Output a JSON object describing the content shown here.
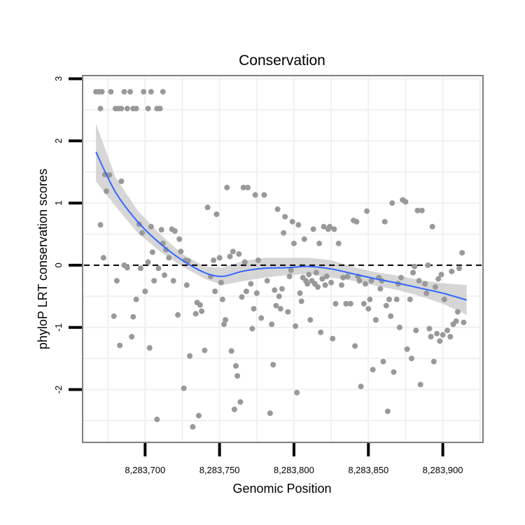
{
  "chart_data": {
    "type": "scatter",
    "title": "Conservation",
    "xlabel": "Genomic Position",
    "ylabel": "phyloP LRT conservation scores",
    "xlim": [
      8283658,
      8283927
    ],
    "ylim": [
      -2.85,
      3.05
    ],
    "x_ticks": [
      {
        "value": 8283700,
        "label": "8,283,700"
      },
      {
        "value": 8283750,
        "label": "8,283,750"
      },
      {
        "value": 8283800,
        "label": "8,283,800"
      },
      {
        "value": 8283850,
        "label": "8,283,850"
      },
      {
        "value": 8283900,
        "label": "8,283,900"
      }
    ],
    "y_ticks": [
      {
        "value": 3,
        "label": "3"
      },
      {
        "value": 2,
        "label": "2"
      },
      {
        "value": 1,
        "label": "1"
      },
      {
        "value": 0,
        "label": "0"
      },
      {
        "value": -1,
        "label": "-1"
      },
      {
        "value": -2,
        "label": "-2"
      }
    ],
    "reference_line": {
      "y": 0,
      "style": "dashed"
    },
    "colors": {
      "points": "#999999",
      "smooth": "#3366ff",
      "band": "#cccccc",
      "grid": "#f0f0f0",
      "frame": "#7f7f7f"
    },
    "smooth": {
      "x": [
        8283667,
        8283680,
        8283695,
        8283710,
        8283725,
        8283740,
        8283752,
        8283765,
        8283780,
        8283795,
        8283810,
        8283825,
        8283840,
        8283855,
        8283870,
        8283885,
        8283900,
        8283916
      ],
      "y": [
        1.82,
        1.18,
        0.7,
        0.35,
        0.08,
        -0.12,
        -0.18,
        -0.1,
        -0.05,
        -0.04,
        -0.02,
        -0.06,
        -0.14,
        -0.22,
        -0.29,
        -0.37,
        -0.45,
        -0.56
      ],
      "lower": [
        1.35,
        0.95,
        0.52,
        0.22,
        -0.02,
        -0.22,
        -0.32,
        -0.26,
        -0.2,
        -0.16,
        -0.14,
        -0.2,
        -0.25,
        -0.33,
        -0.4,
        -0.5,
        -0.62,
        -0.8
      ],
      "upper": [
        2.28,
        1.42,
        0.88,
        0.5,
        0.18,
        -0.02,
        -0.04,
        0.06,
        0.12,
        0.12,
        0.12,
        0.08,
        -0.03,
        -0.11,
        -0.17,
        -0.24,
        -0.29,
        -0.32
      ]
    },
    "points": [
      [
        8283667,
        2.79
      ],
      [
        8283669,
        2.79
      ],
      [
        8283671,
        2.79
      ],
      [
        8283670,
        2.52
      ],
      [
        8283677,
        2.79
      ],
      [
        8283680,
        2.52
      ],
      [
        8283682,
        2.52
      ],
      [
        8283684,
        2.52
      ],
      [
        8283686,
        2.79
      ],
      [
        8283688,
        2.52
      ],
      [
        8283690,
        2.79
      ],
      [
        8283692,
        2.52
      ],
      [
        8283694,
        2.52
      ],
      [
        8283699,
        2.79
      ],
      [
        8283702,
        2.52
      ],
      [
        8283704,
        2.79
      ],
      [
        8283708,
        2.52
      ],
      [
        8283710,
        2.52
      ],
      [
        8283712,
        2.79
      ],
      [
        8283670,
        0.65
      ],
      [
        8283672,
        0.12
      ],
      [
        8283673,
        1.46
      ],
      [
        8283674,
        1.19
      ],
      [
        8283676,
        1.45
      ],
      [
        8283679,
        -0.82
      ],
      [
        8283681,
        -0.25
      ],
      [
        8283683,
        -1.29
      ],
      [
        8283684,
        1.35
      ],
      [
        8283686,
        0.0
      ],
      [
        8283688,
        -0.04
      ],
      [
        8283691,
        -1.15
      ],
      [
        8283692,
        -0.83
      ],
      [
        8283694,
        -0.55
      ],
      [
        8283696,
        0.66
      ],
      [
        8283697,
        -0.05
      ],
      [
        8283698,
        0.52
      ],
      [
        8283700,
        -0.42
      ],
      [
        8283702,
        0.05
      ],
      [
        8283703,
        -1.33
      ],
      [
        8283704,
        0.62
      ],
      [
        8283705,
        0.21
      ],
      [
        8283706,
        -0.25
      ],
      [
        8283708,
        -2.48
      ],
      [
        8283709,
        -0.05
      ],
      [
        8283711,
        0.57
      ],
      [
        8283712,
        0.35
      ],
      [
        8283713,
        -0.16
      ],
      [
        8283714,
        0.25
      ],
      [
        8283716,
        0.12
      ],
      [
        8283718,
        0.58
      ],
      [
        8283719,
        -0.25
      ],
      [
        8283720,
        0.55
      ],
      [
        8283722,
        -0.8
      ],
      [
        8283723,
        0.42
      ],
      [
        8283724,
        0.22
      ],
      [
        8283726,
        -1.98
      ],
      [
        8283727,
        0.08
      ],
      [
        8283728,
        -0.32
      ],
      [
        8283729,
        0.07
      ],
      [
        8283730,
        -1.46
      ],
      [
        8283732,
        -2.6
      ],
      [
        8283734,
        -0.78
      ],
      [
        8283735,
        -0.6
      ],
      [
        8283736,
        -2.42
      ],
      [
        8283737,
        -0.64
      ],
      [
        8283738,
        -0.74
      ],
      [
        8283740,
        -1.37
      ],
      [
        8283742,
        0.93
      ],
      [
        8283744,
        -0.18
      ],
      [
        8283746,
        0.08
      ],
      [
        8283747,
        -0.42
      ],
      [
        8283748,
        0.82
      ],
      [
        8283750,
        0.12
      ],
      [
        8283751,
        -0.28
      ],
      [
        8283752,
        -0.55
      ],
      [
        8283753,
        -0.95
      ],
      [
        8283754,
        -0.88
      ],
      [
        8283755,
        1.25
      ],
      [
        8283757,
        0.14
      ],
      [
        8283758,
        -1.38
      ],
      [
        8283759,
        0.22
      ],
      [
        8283760,
        -2.32
      ],
      [
        8283761,
        -1.62
      ],
      [
        8283762,
        -1.78
      ],
      [
        8283763,
        0.18
      ],
      [
        8283764,
        -2.2
      ],
      [
        8283765,
        -0.51
      ],
      [
        8283766,
        1.25
      ],
      [
        8283767,
        0.05
      ],
      [
        8283768,
        -0.42
      ],
      [
        8283769,
        1.25
      ],
      [
        8283771,
        -0.3
      ],
      [
        8283772,
        -1.02
      ],
      [
        8283773,
        -0.7
      ],
      [
        8283774,
        1.13
      ],
      [
        8283775,
        -0.45
      ],
      [
        8283776,
        0.08
      ],
      [
        8283778,
        -0.85
      ],
      [
        8283780,
        1.13
      ],
      [
        8283782,
        -0.25
      ],
      [
        8283784,
        -2.38
      ],
      [
        8283785,
        -0.95
      ],
      [
        8283786,
        -1.6
      ],
      [
        8283787,
        -0.4
      ],
      [
        8283788,
        -0.65
      ],
      [
        8283789,
        0.9
      ],
      [
        8283790,
        -0.5
      ],
      [
        8283791,
        -0.7
      ],
      [
        8283792,
        -0.38
      ],
      [
        8283793,
        0.52
      ],
      [
        8283794,
        0.78
      ],
      [
        8283796,
        -0.75
      ],
      [
        8283797,
        -0.18
      ],
      [
        8283798,
        -0.08
      ],
      [
        8283799,
        0.7
      ],
      [
        8283800,
        0.35
      ],
      [
        8283801,
        -0.98
      ],
      [
        8283802,
        -2.05
      ],
      [
        8283803,
        0.65
      ],
      [
        8283804,
        -0.45
      ],
      [
        8283805,
        -0.58
      ],
      [
        8283806,
        -0.2
      ],
      [
        8283807,
        0.42
      ],
      [
        8283808,
        -0.25
      ],
      [
        8283809,
        -0.3
      ],
      [
        8283810,
        -0.15
      ],
      [
        8283811,
        -0.88
      ],
      [
        8283812,
        -0.25
      ],
      [
        8283813,
        0.58
      ],
      [
        8283814,
        -0.3
      ],
      [
        8283815,
        -0.12
      ],
      [
        8283816,
        -0.35
      ],
      [
        8283817,
        0.35
      ],
      [
        8283818,
        -1.08
      ],
      [
        8283819,
        -0.22
      ],
      [
        8283820,
        0.62
      ],
      [
        8283821,
        -0.32
      ],
      [
        8283822,
        -0.18
      ],
      [
        8283823,
        0.58
      ],
      [
        8283824,
        0.62
      ],
      [
        8283825,
        -0.28
      ],
      [
        8283826,
        -1.18
      ],
      [
        8283827,
        0.58
      ],
      [
        8283828,
        -0.62
      ],
      [
        8283830,
        0.35
      ],
      [
        8283832,
        -0.32
      ],
      [
        8283833,
        -0.2
      ],
      [
        8283835,
        -0.62
      ],
      [
        8283836,
        -0.18
      ],
      [
        8283838,
        -0.62
      ],
      [
        8283840,
        0.72
      ],
      [
        8283841,
        -1.3
      ],
      [
        8283842,
        0.7
      ],
      [
        8283843,
        -0.18
      ],
      [
        8283844,
        -0.25
      ],
      [
        8283845,
        -1.95
      ],
      [
        8283847,
        -0.62
      ],
      [
        8283848,
        -0.3
      ],
      [
        8283849,
        0.87
      ],
      [
        8283850,
        -0.7
      ],
      [
        8283851,
        -0.55
      ],
      [
        8283852,
        -0.25
      ],
      [
        8283853,
        -1.68
      ],
      [
        8283855,
        -0.88
      ],
      [
        8283857,
        -0.2
      ],
      [
        8283858,
        -0.38
      ],
      [
        8283859,
        -0.25
      ],
      [
        8283860,
        -1.55
      ],
      [
        8283861,
        0.7
      ],
      [
        8283862,
        -0.65
      ],
      [
        8283863,
        -2.35
      ],
      [
        8283864,
        -0.55
      ],
      [
        8283865,
        -0.82
      ],
      [
        8283866,
        1.0
      ],
      [
        8283867,
        -1.72
      ],
      [
        8283869,
        -0.55
      ],
      [
        8283870,
        -0.3
      ],
      [
        8283871,
        -1.0
      ],
      [
        8283872,
        -0.2
      ],
      [
        8283873,
        1.05
      ],
      [
        8283875,
        1.02
      ],
      [
        8283876,
        -1.35
      ],
      [
        8283878,
        -0.55
      ],
      [
        8283879,
        -1.5
      ],
      [
        8283880,
        -0.12
      ],
      [
        8283881,
        -0.02
      ],
      [
        8283882,
        -1.05
      ],
      [
        8283883,
        0.88
      ],
      [
        8283884,
        -0.25
      ],
      [
        8283885,
        -1.92
      ],
      [
        8283886,
        0.88
      ],
      [
        8283888,
        -0.3
      ],
      [
        8283889,
        -0.45
      ],
      [
        8283890,
        0.0
      ],
      [
        8283891,
        -1.02
      ],
      [
        8283892,
        -1.15
      ],
      [
        8283893,
        0.62
      ],
      [
        8283894,
        -1.55
      ],
      [
        8283895,
        -0.35
      ],
      [
        8283896,
        -1.1
      ],
      [
        8283897,
        -0.22
      ],
      [
        8283898,
        -1.22
      ],
      [
        8283899,
        -0.15
      ],
      [
        8283900,
        -1.12
      ],
      [
        8283901,
        -0.55
      ],
      [
        8283903,
        -1.05
      ],
      [
        8283905,
        -1.15
      ],
      [
        8283906,
        -0.1
      ],
      [
        8283907,
        -0.95
      ],
      [
        8283909,
        -0.9
      ],
      [
        8283910,
        -0.75
      ],
      [
        8283911,
        -0.05
      ],
      [
        8283913,
        0.2
      ],
      [
        8283914,
        -0.92
      ]
    ]
  }
}
